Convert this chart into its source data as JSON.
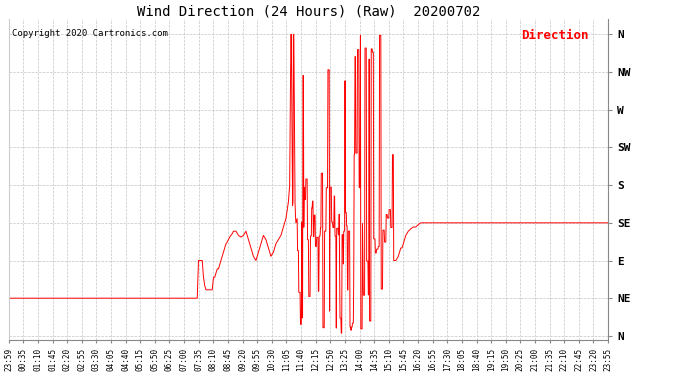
{
  "title": "Wind Direction (24 Hours) (Raw)  20200702",
  "copyright": "Copyright 2020 Cartronics.com",
  "legend_label": "Direction",
  "line_color": "#ff0000",
  "bg_color": "#ffffff",
  "grid_color": "#bbbbbb",
  "ytick_labels": [
    "N",
    "NE",
    "E",
    "SE",
    "S",
    "SW",
    "W",
    "NW",
    "N"
  ],
  "ytick_values": [
    0,
    45,
    90,
    135,
    180,
    225,
    270,
    315,
    360
  ],
  "ylim": [
    -5,
    378
  ],
  "xtick_labels": [
    "23:59",
    "00:35",
    "01:10",
    "01:45",
    "02:20",
    "02:55",
    "03:30",
    "04:05",
    "04:40",
    "05:15",
    "05:50",
    "06:25",
    "07:00",
    "07:35",
    "08:10",
    "08:45",
    "09:20",
    "09:55",
    "10:30",
    "11:05",
    "11:40",
    "12:15",
    "12:50",
    "13:25",
    "14:00",
    "14:35",
    "15:10",
    "15:45",
    "16:20",
    "16:55",
    "17:30",
    "18:05",
    "18:40",
    "19:15",
    "19:50",
    "20:25",
    "21:00",
    "21:35",
    "22:10",
    "22:45",
    "23:20",
    "23:55"
  ]
}
